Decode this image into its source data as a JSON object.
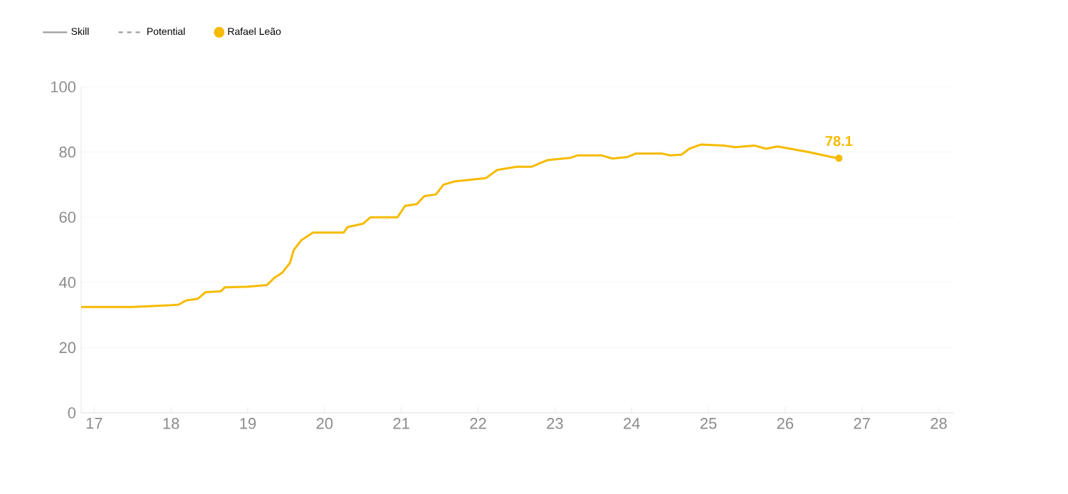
{
  "chart_data": {
    "type": "line",
    "xlim": [
      16.83,
      28.2
    ],
    "ylim": [
      0,
      100
    ],
    "xticks": [
      17,
      18,
      19,
      20,
      21,
      22,
      23,
      24,
      25,
      26,
      27,
      28
    ],
    "yticks": [
      0,
      20,
      40,
      60,
      80,
      100
    ],
    "grid": "y",
    "legend": "top left",
    "series": [
      {
        "name": "Skill",
        "color": "#9e9e9e",
        "line_style": "solid"
      },
      {
        "name": "Potential",
        "color": "#9e9e9e",
        "line_style": "dashed"
      },
      {
        "name": "Rafael Leão",
        "color": "#f5bb00",
        "line_style": "solid",
        "x": [
          16.83,
          17.5,
          18.0,
          18.1,
          18.2,
          18.35,
          18.45,
          18.65,
          18.7,
          19.0,
          19.25,
          19.35,
          19.45,
          19.55,
          19.6,
          19.7,
          19.85,
          20.25,
          20.3,
          20.5,
          20.6,
          20.95,
          21.05,
          21.2,
          21.3,
          21.45,
          21.55,
          21.7,
          21.9,
          22.1,
          22.25,
          22.5,
          22.7,
          22.9,
          23.2,
          23.3,
          23.6,
          23.75,
          23.95,
          24.05,
          24.4,
          24.5,
          24.65,
          24.75,
          24.9,
          25.2,
          25.35,
          25.6,
          25.75,
          25.9,
          26.3,
          26.5,
          26.6,
          26.7
        ],
        "values": [
          32.5,
          32.5,
          33,
          33.2,
          34.5,
          35,
          37,
          37.3,
          38.5,
          38.7,
          39.2,
          41.5,
          43,
          46,
          50,
          53,
          55.3,
          55.3,
          57,
          58,
          60,
          60,
          63.5,
          64,
          66.5,
          67,
          70,
          71,
          71.5,
          72,
          74.5,
          75.5,
          75.5,
          77.5,
          78.2,
          79,
          79,
          78,
          78.5,
          79.5,
          79.5,
          79,
          79.2,
          81,
          82.3,
          82,
          81.5,
          82,
          81,
          81.7,
          80,
          79,
          78.5,
          78.1
        ],
        "value_labels": [
          null,
          null,
          null,
          null,
          null,
          null,
          null,
          null,
          null,
          null,
          null,
          null,
          null,
          null,
          null,
          null,
          null,
          null,
          null,
          null,
          null,
          null,
          null,
          null,
          null,
          null,
          null,
          null,
          null,
          null,
          null,
          null,
          null,
          null,
          null,
          null,
          null,
          null,
          null,
          null,
          null,
          null,
          null,
          null,
          null,
          null,
          null,
          null,
          null,
          null,
          null,
          null,
          null,
          "78.1"
        ]
      }
    ]
  }
}
